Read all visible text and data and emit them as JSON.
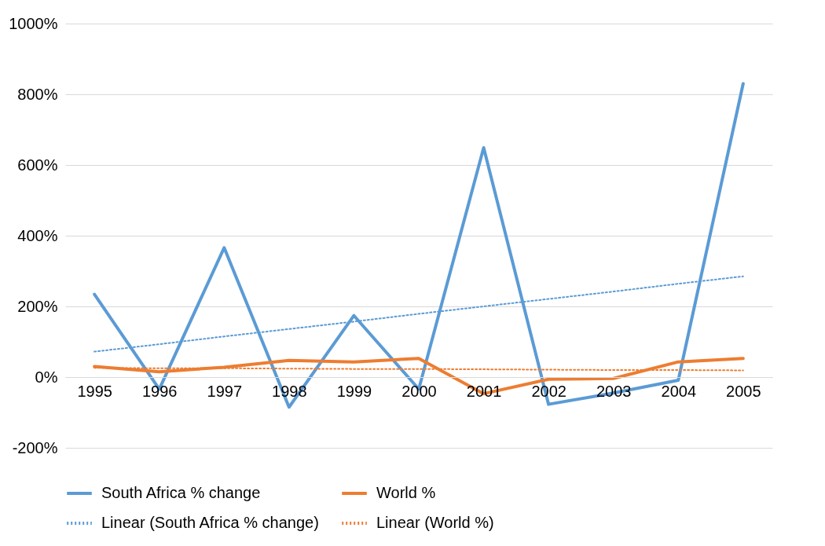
{
  "chart_data": {
    "type": "line",
    "categories": [
      "1995",
      "1996",
      "1997",
      "1998",
      "1999",
      "2000",
      "2001",
      "2002",
      "2003",
      "2004",
      "2005"
    ],
    "series": [
      {
        "name": "South Africa % change",
        "color": "#5b9bd5",
        "line_style": "solid",
        "values": [
          234,
          -34,
          366,
          -85,
          174,
          -34,
          649,
          -77,
          -45,
          -9,
          830
        ]
      },
      {
        "name": "World %",
        "color": "#ed7d31",
        "line_style": "solid",
        "values": [
          30,
          15,
          28,
          47,
          43,
          53,
          -47,
          -6,
          -4,
          43,
          53
        ]
      },
      {
        "name": "Linear (South Africa % change)",
        "type": "line",
        "color": "#5b9bd5",
        "line_style": "dotted",
        "values": [
          72,
          93,
          115,
          136,
          157,
          179,
          200,
          221,
          242,
          264,
          285
        ]
      },
      {
        "name": "Linear (World %)",
        "type": "line",
        "color": "#ed7d31",
        "line_style": "dotted",
        "values": [
          26,
          25,
          25,
          24,
          23,
          23,
          22,
          21,
          20,
          20,
          19
        ]
      }
    ],
    "ylim": [
      -200,
      1000
    ],
    "yticks": [
      {
        "value": -200,
        "label": "-200%"
      },
      {
        "value": 0,
        "label": "0%"
      },
      {
        "value": 200,
        "label": "200%"
      },
      {
        "value": 400,
        "label": "400%"
      },
      {
        "value": 600,
        "label": "600%"
      },
      {
        "value": 800,
        "label": "800%"
      },
      {
        "value": 1000,
        "label": "1000%"
      }
    ],
    "grid": "y",
    "legend": "bottom"
  }
}
